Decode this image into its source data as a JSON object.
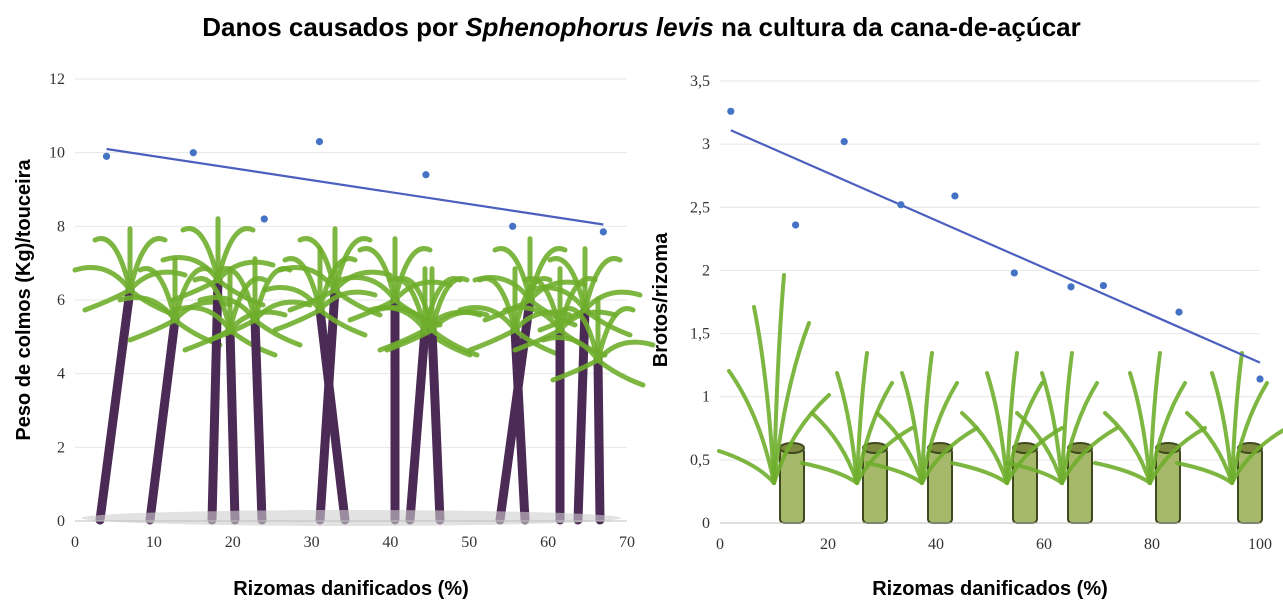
{
  "title": {
    "prefix": "Danos causados por ",
    "species": "Sphenophorus levis",
    "suffix": " na cultura da cana-de-açúcar"
  },
  "colors": {
    "points": "#4472c4",
    "trendline": "#4a5fbe",
    "cane_stalk": "#4b2a55",
    "cane_leaf": "#6fae2c",
    "rhizome": "#a6b86a",
    "gridline": "#e6e6e6"
  },
  "chart_data": [
    {
      "type": "scatter",
      "xlabel": "Rizomas danificados (%)",
      "ylabel": "Peso de colmos (Kg)/touceira",
      "xlim": [
        0,
        70
      ],
      "ylim": [
        0,
        12
      ],
      "xticks": [
        0,
        10,
        20,
        30,
        40,
        50,
        60,
        70
      ],
      "yticks": [
        0,
        2,
        4,
        6,
        8,
        10,
        12
      ],
      "x": [
        4,
        15,
        24,
        31,
        44.5,
        55.5,
        67
      ],
      "y": [
        9.9,
        10.0,
        8.2,
        10.3,
        9.4,
        8.0,
        7.85
      ],
      "trendline": {
        "x": [
          4,
          67
        ],
        "y": [
          10.1,
          8.05
        ]
      },
      "grid": true,
      "background_illustration": "cane-stalks-icon"
    },
    {
      "type": "scatter",
      "xlabel": "Rizomas danificados (%)",
      "ylabel": "Brotos/rizoma",
      "xlim": [
        0,
        100
      ],
      "ylim": [
        0,
        3.5
      ],
      "xticks": [
        0,
        20,
        40,
        60,
        80,
        100
      ],
      "yticks": [
        "0",
        "0,5",
        "1",
        "1,5",
        "2",
        "2,5",
        "3",
        "3,5"
      ],
      "ytick_values": [
        0,
        0.5,
        1,
        1.5,
        2,
        2.5,
        3,
        3.5
      ],
      "x": [
        2,
        14,
        23,
        33.5,
        43.5,
        54.5,
        65,
        71,
        85,
        100
      ],
      "y": [
        3.26,
        2.36,
        3.02,
        2.52,
        2.59,
        1.98,
        1.87,
        1.88,
        1.67,
        1.14
      ],
      "trendline": {
        "x": [
          2,
          100
        ],
        "y": [
          3.11,
          1.27
        ]
      },
      "grid": true,
      "background_illustration": "rhizome-sprouts-icon"
    }
  ]
}
